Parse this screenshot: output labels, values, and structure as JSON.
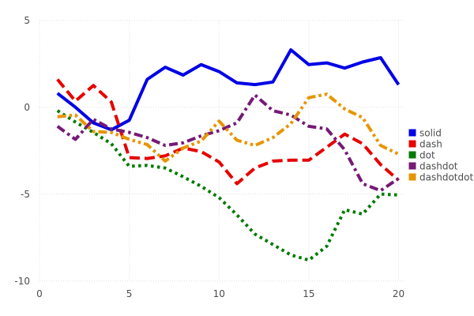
{
  "chart_data": {
    "type": "line",
    "x": [
      1,
      2,
      3,
      4,
      5,
      6,
      7,
      8,
      9,
      10,
      11,
      12,
      13,
      14,
      15,
      16,
      17,
      18,
      19,
      20
    ],
    "series": [
      {
        "name": "solid",
        "color": "#0000e6",
        "line_style": "solid",
        "values": [
          0.8,
          0.0,
          -0.9,
          -1.3,
          -0.75,
          1.6,
          2.3,
          1.85,
          2.45,
          2.05,
          1.4,
          1.3,
          1.45,
          3.3,
          2.45,
          2.55,
          2.25,
          2.6,
          2.85,
          1.3
        ]
      },
      {
        "name": "dash",
        "color": "#e60000",
        "line_style": "dash",
        "values": [
          1.6,
          0.35,
          1.25,
          0.3,
          -2.9,
          -2.95,
          -2.8,
          -2.35,
          -2.55,
          -3.15,
          -4.4,
          -3.5,
          -3.1,
          -3.05,
          -3.05,
          -2.3,
          -1.55,
          -2.1,
          -3.3,
          -4.2
        ]
      },
      {
        "name": "dot",
        "color": "#007a00",
        "line_style": "dot",
        "values": [
          -0.2,
          -0.85,
          -1.45,
          -2.1,
          -3.4,
          -3.35,
          -3.5,
          -4.0,
          -4.55,
          -5.2,
          -6.2,
          -7.3,
          -7.9,
          -8.5,
          -8.8,
          -8.0,
          -5.9,
          -6.15,
          -5.0,
          -5.05
        ]
      },
      {
        "name": "dashdot",
        "color": "#751a75",
        "line_style": "dashdot",
        "values": [
          -1.1,
          -1.85,
          -0.7,
          -1.25,
          -1.45,
          -1.75,
          -2.2,
          -2.05,
          -1.65,
          -1.35,
          -0.9,
          0.7,
          -0.2,
          -0.45,
          -1.1,
          -1.25,
          -2.45,
          -4.4,
          -4.8,
          -4.1
        ]
      },
      {
        "name": "dashdotdot",
        "color": "#e69500",
        "line_style": "dashdotdot",
        "values": [
          -0.55,
          -0.45,
          -1.4,
          -1.45,
          -1.85,
          -2.15,
          -3.1,
          -2.35,
          -1.95,
          -0.8,
          -1.9,
          -2.2,
          -1.75,
          -0.95,
          0.55,
          0.75,
          -0.1,
          -0.6,
          -2.2,
          -2.7
        ]
      }
    ],
    "title": "",
    "xlabel": "",
    "ylabel": "",
    "xlim": [
      0,
      20
    ],
    "ylim": [
      -10,
      5
    ],
    "x_ticks": [
      "0",
      "5",
      "10",
      "15",
      "20"
    ],
    "x_tick_values": [
      0,
      5,
      10,
      15,
      20
    ],
    "y_ticks": [
      "5",
      "0",
      "-5",
      "-10"
    ],
    "y_tick_values": [
      5,
      0,
      -5,
      -10
    ],
    "grid": true,
    "grid_style": "dotted",
    "grid_color": "#dfdfea",
    "text_color": "#4d4d4d",
    "background_color": "#ffffff",
    "line_width": 4,
    "legend_position": "right",
    "legend": [
      "solid",
      "dash",
      "dot",
      "dashdot",
      "dashdotdot"
    ]
  }
}
